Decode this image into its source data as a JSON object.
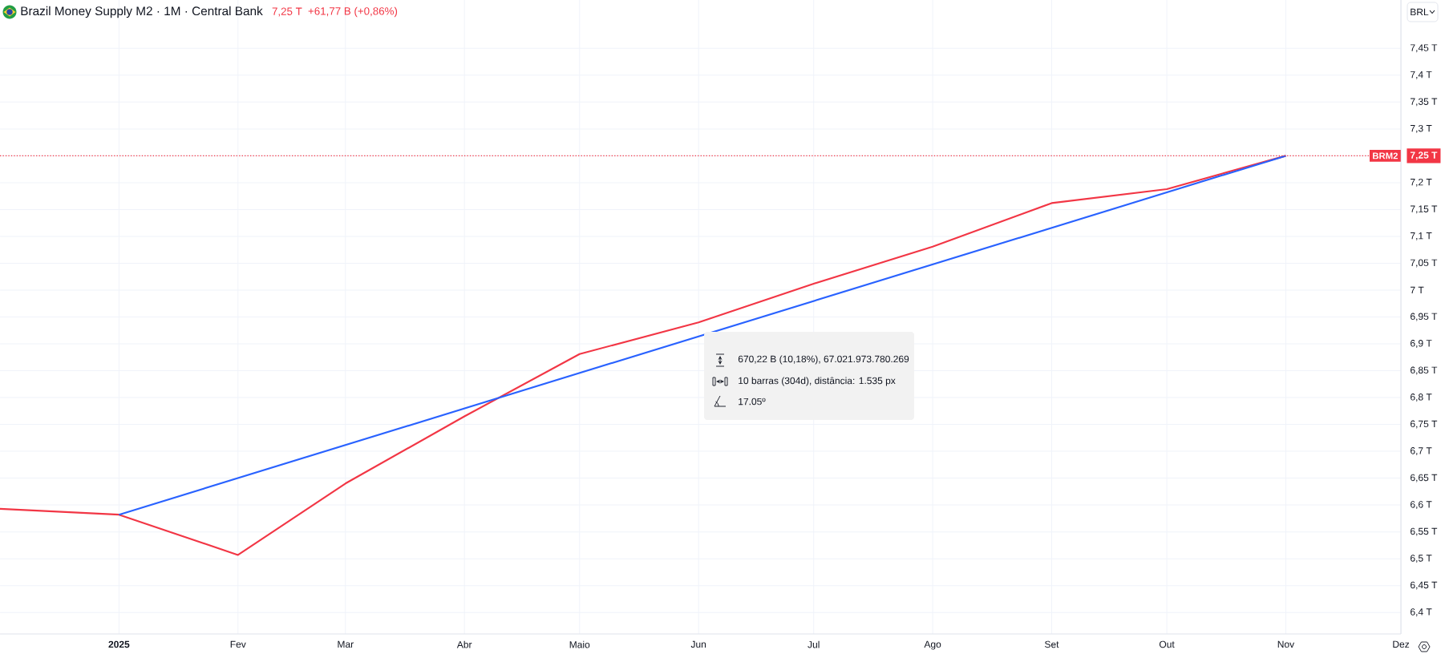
{
  "chart_data": {
    "type": "line",
    "title": "Brazil Money Supply M2 · 1M · Central Bank",
    "x": [
      "2024-12",
      "2025-01",
      "2025-02",
      "2025-03",
      "2025-04",
      "2025-05",
      "2025-06",
      "2025-07",
      "2025-08",
      "2025-09",
      "2025-10",
      "2025-11"
    ],
    "series": [
      {
        "color": "#f23645",
        "values": [
          6.593,
          6.582,
          6.507,
          6.64,
          6.765,
          6.881,
          6.94,
          7.012,
          7.081,
          7.162,
          7.188,
          7.25
        ]
      },
      {
        "color": "#2962ff",
        "x": [
          "2025-01",
          "2025-11"
        ],
        "values": [
          6.582,
          7.25
        ]
      }
    ],
    "xlim": [
      "2024-12",
      "2025-12"
    ],
    "ylim": [
      6.36,
      7.54
    ],
    "xticks": [
      {
        "value": "2025-01",
        "label": "2025"
      },
      {
        "value": "2025-02",
        "label": "Fev"
      },
      {
        "value": "2025-03",
        "label": "Mar"
      },
      {
        "value": "2025-04",
        "label": "Abr"
      },
      {
        "value": "2025-05",
        "label": "Maio"
      },
      {
        "value": "2025-06",
        "label": "Jun"
      },
      {
        "value": "2025-07",
        "label": "Jul"
      },
      {
        "value": "2025-08",
        "label": "Ago"
      },
      {
        "value": "2025-09",
        "label": "Set"
      },
      {
        "value": "2025-10",
        "label": "Out"
      },
      {
        "value": "2025-11",
        "label": "Nov"
      },
      {
        "value": "2025-12",
        "label": "Dez"
      }
    ],
    "yticks": [
      {
        "value": 6.4,
        "label": "6,4 T"
      },
      {
        "value": 6.45,
        "label": "6,45 T"
      },
      {
        "value": 6.5,
        "label": "6,5 T"
      },
      {
        "value": 6.55,
        "label": "6,55 T"
      },
      {
        "value": 6.6,
        "label": "6,6 T"
      },
      {
        "value": 6.65,
        "label": "6,65 T"
      },
      {
        "value": 6.7,
        "label": "6,7 T"
      },
      {
        "value": 6.75,
        "label": "6,75 T"
      },
      {
        "value": 6.8,
        "label": "6,8 T"
      },
      {
        "value": 6.85,
        "label": "6,85 T"
      },
      {
        "value": 6.9,
        "label": "6,9 T"
      },
      {
        "value": 6.95,
        "label": "6,95 T"
      },
      {
        "value": 7.0,
        "label": "7 T"
      },
      {
        "value": 7.05,
        "label": "7,05 T"
      },
      {
        "value": 7.1,
        "label": "7,1 T"
      },
      {
        "value": 7.15,
        "label": "7,15 T"
      },
      {
        "value": 7.2,
        "label": "7,2 T"
      },
      {
        "value": 7.25,
        "label": "7,25 T"
      },
      {
        "value": 7.3,
        "label": "7,3 T"
      },
      {
        "value": 7.35,
        "label": "7,35 T"
      },
      {
        "value": 7.4,
        "label": "7,4 T"
      },
      {
        "value": 7.45,
        "label": "7,45 T"
      }
    ],
    "grid": true,
    "ref_lines": [
      {
        "axis": "y",
        "value": 7.25,
        "label": "BRM2",
        "color": "#f23645",
        "line_style": "dotted"
      }
    ],
    "annotations": [
      "7,25 T",
      "+61,77 B (+0,86%)",
      "670,22 B (10,18%), 67.021.973.780.269",
      "10 barras (304d), distância: 1.535 px",
      "17.05º",
      "BRL"
    ]
  }
}
